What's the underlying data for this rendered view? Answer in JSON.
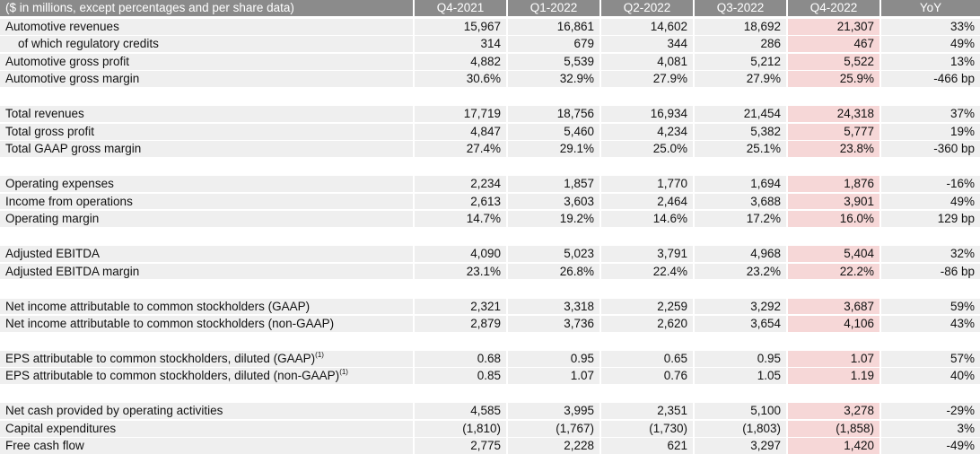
{
  "header": {
    "label": "($ in millions, except percentages and per share data)",
    "columns": [
      "Q4-2021",
      "Q1-2022",
      "Q2-2022",
      "Q3-2022",
      "Q4-2022",
      "YoY"
    ]
  },
  "sections": [
    {
      "rows": [
        {
          "label": "Automotive revenues",
          "values": [
            "15,967",
            "16,861",
            "14,602",
            "18,692",
            "21,307",
            "33%"
          ]
        },
        {
          "label": "of which regulatory credits",
          "indent": true,
          "values": [
            "314",
            "679",
            "344",
            "286",
            "467",
            "49%"
          ]
        },
        {
          "label": "Automotive gross profit",
          "values": [
            "4,882",
            "5,539",
            "4,081",
            "5,212",
            "5,522",
            "13%"
          ]
        },
        {
          "label": "Automotive gross margin",
          "values": [
            "30.6%",
            "32.9%",
            "27.9%",
            "27.9%",
            "25.9%",
            "-466 bp"
          ]
        }
      ]
    },
    {
      "rows": [
        {
          "label": "Total revenues",
          "values": [
            "17,719",
            "18,756",
            "16,934",
            "21,454",
            "24,318",
            "37%"
          ]
        },
        {
          "label": "Total gross profit",
          "values": [
            "4,847",
            "5,460",
            "4,234",
            "5,382",
            "5,777",
            "19%"
          ]
        },
        {
          "label": "Total GAAP gross margin",
          "values": [
            "27.4%",
            "29.1%",
            "25.0%",
            "25.1%",
            "23.8%",
            "-360 bp"
          ]
        }
      ]
    },
    {
      "rows": [
        {
          "label": "Operating expenses",
          "values": [
            "2,234",
            "1,857",
            "1,770",
            "1,694",
            "1,876",
            "-16%"
          ]
        },
        {
          "label": "Income from operations",
          "values": [
            "2,613",
            "3,603",
            "2,464",
            "3,688",
            "3,901",
            "49%"
          ]
        },
        {
          "label": "Operating margin",
          "values": [
            "14.7%",
            "19.2%",
            "14.6%",
            "17.2%",
            "16.0%",
            "129 bp"
          ]
        }
      ]
    },
    {
      "rows": [
        {
          "label": "Adjusted EBITDA",
          "values": [
            "4,090",
            "5,023",
            "3,791",
            "4,968",
            "5,404",
            "32%"
          ]
        },
        {
          "label": "Adjusted EBITDA margin",
          "values": [
            "23.1%",
            "26.8%",
            "22.4%",
            "23.2%",
            "22.2%",
            "-86 bp"
          ]
        }
      ]
    },
    {
      "rows": [
        {
          "label": "Net income attributable to common stockholders (GAAP)",
          "values": [
            "2,321",
            "3,318",
            "2,259",
            "3,292",
            "3,687",
            "59%"
          ]
        },
        {
          "label": "Net income attributable to common stockholders (non-GAAP)",
          "values": [
            "2,879",
            "3,736",
            "2,620",
            "3,654",
            "4,106",
            "43%"
          ]
        }
      ]
    },
    {
      "rows": [
        {
          "label": "EPS attributable to common stockholders, diluted (GAAP)",
          "sup": "(1)",
          "values": [
            "0.68",
            "0.95",
            "0.65",
            "0.95",
            "1.07",
            "57%"
          ]
        },
        {
          "label": "EPS attributable to common stockholders, diluted (non-GAAP)",
          "sup": "(1)",
          "values": [
            "0.85",
            "1.07",
            "0.76",
            "1.05",
            "1.19",
            "40%"
          ]
        }
      ]
    },
    {
      "rows": [
        {
          "label": "Net cash provided by operating activities",
          "values": [
            "4,585",
            "3,995",
            "2,351",
            "5,100",
            "3,278",
            "-29%"
          ]
        },
        {
          "label": "Capital expenditures",
          "values": [
            "(1,810)",
            "(1,767)",
            "(1,730)",
            "(1,803)",
            "(1,858)",
            "3%"
          ]
        },
        {
          "label": "Free cash flow",
          "values": [
            "2,775",
            "2,228",
            "621",
            "3,297",
            "1,420",
            "-49%"
          ]
        }
      ]
    }
  ],
  "colors": {
    "header_bg": "#8b8b8b",
    "row_bg": "#efefef",
    "highlight_bg": "#f6d7d7"
  }
}
